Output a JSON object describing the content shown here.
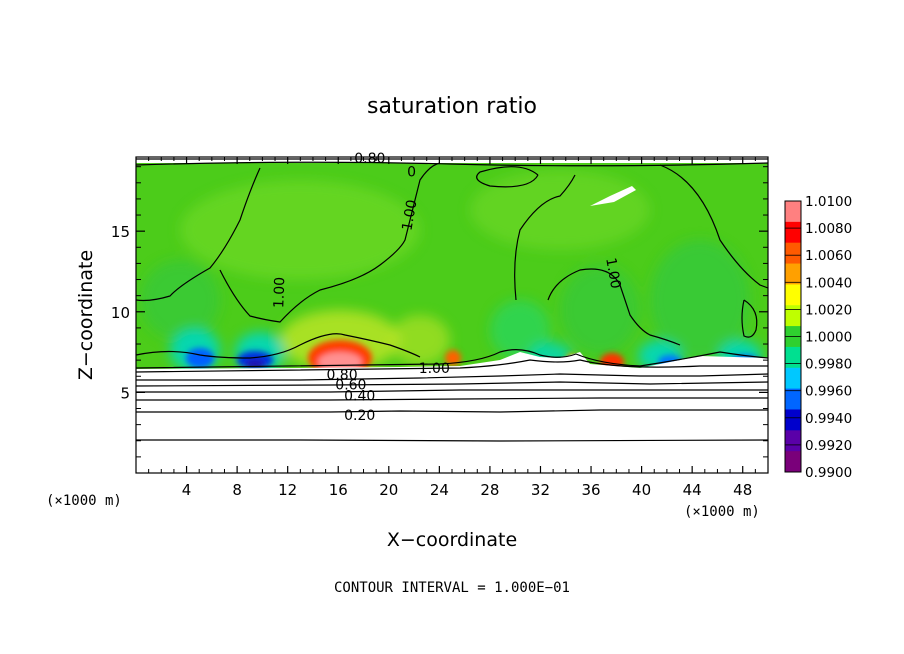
{
  "chart_data": {
    "type": "heatmap",
    "title": "saturation ratio",
    "xlabel": "X−coordinate",
    "ylabel": "Z−coordinate",
    "x_unit": "(×1000 m)",
    "y_unit": "(×1000 m)",
    "xlim": [
      0,
      50
    ],
    "ylim": [
      0,
      19.6
    ],
    "x_ticks": [
      4,
      8,
      12,
      16,
      20,
      24,
      28,
      32,
      36,
      40,
      44,
      48
    ],
    "y_ticks": [
      5,
      10,
      15
    ],
    "footer": "CONTOUR INTERVAL = 1.000E−01",
    "colorbar": {
      "labels": [
        "1.0100",
        "1.0080",
        "1.0060",
        "1.0040",
        "1.0020",
        "1.0000",
        "0.9980",
        "0.9960",
        "0.9940",
        "0.9920",
        "0.9900"
      ],
      "colors": [
        "#ff8080",
        "#ff0000",
        "#ff5a00",
        "#ffa000",
        "#ffff00",
        "#bfff00",
        "#2fd02f",
        "#00e090",
        "#00c8ff",
        "#0066ff",
        "#0000cc",
        "#5a00a8",
        "#7a007a"
      ]
    },
    "contour_labels": [
      {
        "text": "0.80",
        "x": 18.5,
        "y": 19.55
      },
      {
        "text": "1.00",
        "x": 21.6,
        "y": 16.0,
        "angle": -80
      },
      {
        "text": "1.00",
        "x": 11.3,
        "y": 11.2,
        "angle": -88
      },
      {
        "text": "1.00",
        "x": 37.8,
        "y": 12.4,
        "angle": 80
      },
      {
        "text": "0",
        "x": 21.8,
        "y": 18.7
      },
      {
        "text": "1.00",
        "x": 23.6,
        "y": 6.5
      },
      {
        "text": "0.80",
        "x": 16.3,
        "y": 6.1
      },
      {
        "text": "0.60",
        "x": 17.0,
        "y": 5.5
      },
      {
        "text": "0.40",
        "x": 17.7,
        "y": 4.8
      },
      {
        "text": "0.20",
        "x": 17.7,
        "y": 3.6
      }
    ],
    "series": []
  }
}
